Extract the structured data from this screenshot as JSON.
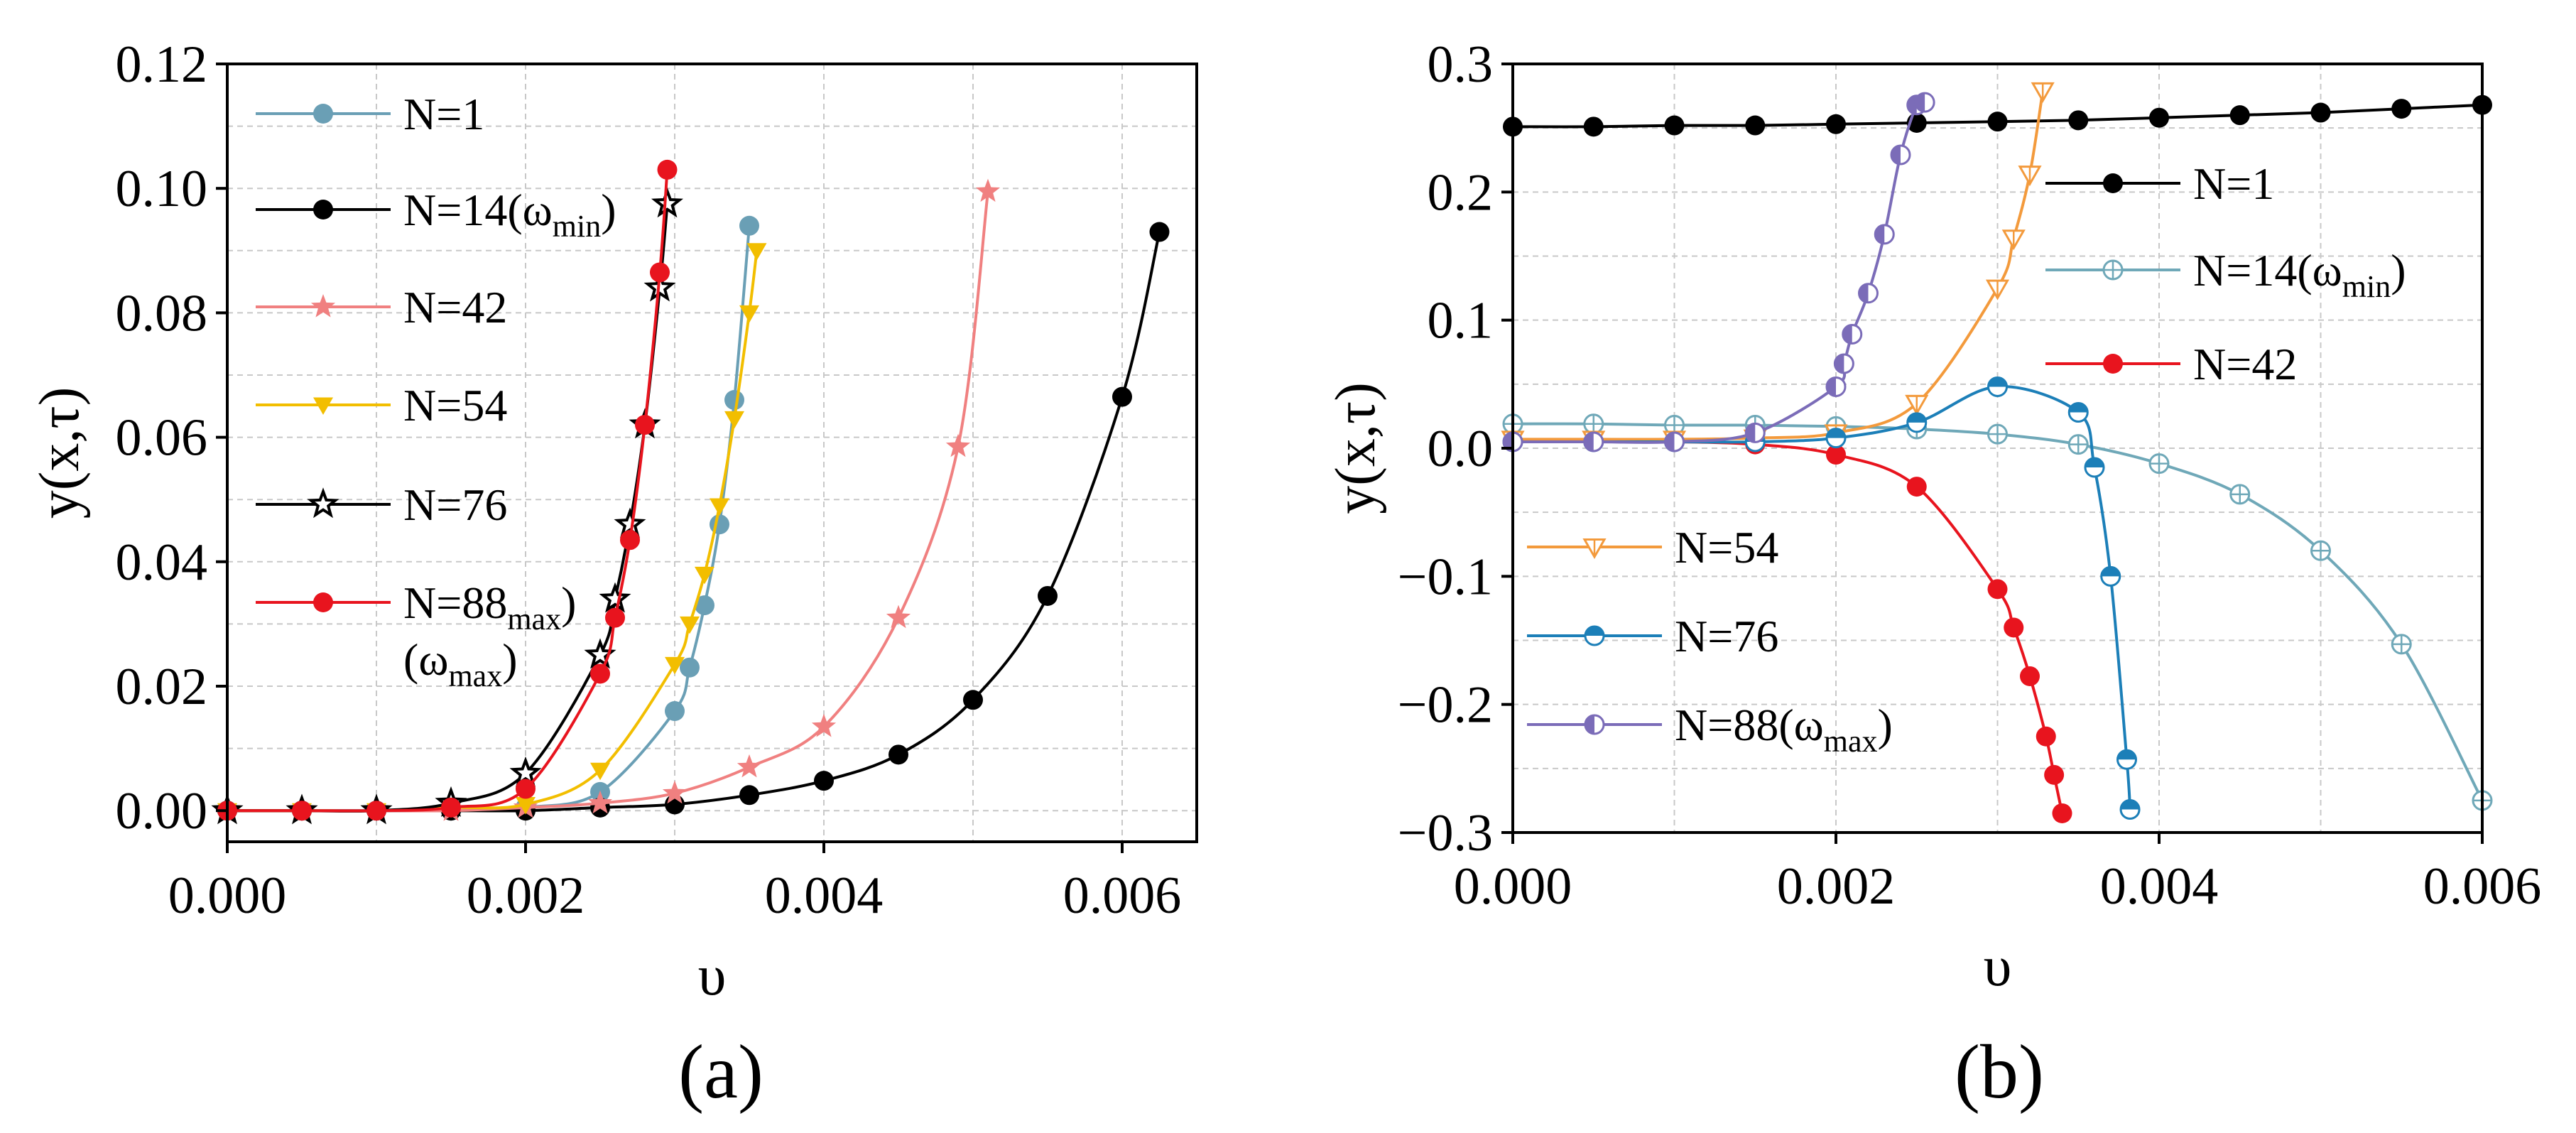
{
  "chart_data": [
    {
      "type": "line",
      "panel": "(a)",
      "xlabel": "υ",
      "ylabel": "y(x,τ)",
      "xlim": [
        0,
        0.0065
      ],
      "ylim": [
        -0.005,
        0.12
      ],
      "xticks": [
        "0.000",
        "0.002",
        "0.004",
        "0.006"
      ],
      "xtick_values": [
        0,
        0.002,
        0.004,
        0.006
      ],
      "yticks": [
        "0.00",
        "0.02",
        "0.04",
        "0.06",
        "0.08",
        "0.10",
        "0.12"
      ],
      "ytick_values": [
        0,
        0.02,
        0.04,
        0.06,
        0.08,
        0.1,
        0.12
      ],
      "grid": true,
      "legend_position": "upper-left",
      "series": [
        {
          "name": "N=1",
          "label": "N=1",
          "color": "#6a9fb5",
          "marker": "circle",
          "x": [
            0,
            0.0005,
            0.001,
            0.0015,
            0.002,
            0.0025,
            0.003,
            0.0031,
            0.0032,
            0.0033,
            0.0034,
            0.0035
          ],
          "y": [
            0,
            0,
            0,
            0,
            0.0005,
            0.003,
            0.016,
            0.023,
            0.033,
            0.046,
            0.066,
            0.094
          ]
        },
        {
          "name": "N=14(ωmin)",
          "label": "N=14(ω",
          "sub": "min",
          "tail": ")",
          "color": "#000000",
          "marker": "circle",
          "x": [
            0,
            0.0005,
            0.001,
            0.0015,
            0.002,
            0.0025,
            0.003,
            0.0035,
            0.004,
            0.0045,
            0.005,
            0.0055,
            0.006,
            0.00625
          ],
          "y": [
            0,
            0,
            0,
            0,
            0,
            0.0005,
            0.001,
            0.0025,
            0.0048,
            0.009,
            0.0178,
            0.0345,
            0.0665,
            0.093
          ]
        },
        {
          "name": "N=42",
          "label": "N=42",
          "color": "#f08080",
          "marker": "star-filled",
          "x": [
            0,
            0.0005,
            0.001,
            0.0015,
            0.002,
            0.0025,
            0.003,
            0.0035,
            0.004,
            0.0045,
            0.0049,
            0.0051
          ],
          "y": [
            0,
            0,
            0,
            0,
            0.0005,
            0.0012,
            0.0028,
            0.007,
            0.0135,
            0.031,
            0.0585,
            0.0995
          ]
        },
        {
          "name": "N=54",
          "label": "N=54",
          "color": "#f2be00",
          "marker": "triangle-down",
          "x": [
            0,
            0.0005,
            0.001,
            0.0015,
            0.002,
            0.0025,
            0.003,
            0.0031,
            0.0032,
            0.0033,
            0.0034,
            0.0035,
            0.00355
          ],
          "y": [
            0,
            0,
            0,
            0.0005,
            0.001,
            0.0065,
            0.0235,
            0.03,
            0.038,
            0.049,
            0.063,
            0.08,
            0.09
          ]
        },
        {
          "name": "N=76",
          "label": "N=76",
          "color": "#000000",
          "marker": "star-open",
          "x": [
            0,
            0.0005,
            0.001,
            0.0015,
            0.002,
            0.0025,
            0.0026,
            0.0027,
            0.0028,
            0.0029,
            0.00295
          ],
          "y": [
            0,
            0,
            0,
            0.0012,
            0.006,
            0.025,
            0.034,
            0.046,
            0.062,
            0.084,
            0.0975
          ]
        },
        {
          "name": "N=88(ωmax)",
          "label": "N=88",
          "label2": "(ω",
          "sub": "max",
          "tail": ")",
          "color": "#e8141e",
          "marker": "circle",
          "x": [
            0,
            0.0005,
            0.001,
            0.0015,
            0.002,
            0.0025,
            0.0026,
            0.0027,
            0.0028,
            0.0029,
            0.00295
          ],
          "y": [
            0,
            0,
            0,
            0.0005,
            0.0035,
            0.022,
            0.031,
            0.0435,
            0.062,
            0.0865,
            0.103
          ]
        }
      ]
    },
    {
      "type": "line",
      "panel": "(b)",
      "xlabel": "υ",
      "ylabel": "y(x,τ)",
      "xlim": [
        0,
        0.006
      ],
      "ylim": [
        -0.3,
        0.3
      ],
      "xticks": [
        "0.000",
        "0.002",
        "0.004",
        "0.006"
      ],
      "xtick_values": [
        0,
        0.002,
        0.004,
        0.006
      ],
      "yticks": [
        "−0.3",
        "−0.2",
        "−0.1",
        "0.0",
        "0.1",
        "0.2",
        "0.3"
      ],
      "ytick_values": [
        -0.3,
        -0.2,
        -0.1,
        0,
        0.1,
        0.2,
        0.3
      ],
      "grid": true,
      "legend_position": "right and lower-left",
      "series": [
        {
          "name": "N=1",
          "label": "N=1",
          "color": "#000000",
          "marker": "circle",
          "x": [
            0,
            0.0005,
            0.001,
            0.0015,
            0.002,
            0.0025,
            0.003,
            0.0035,
            0.004,
            0.0045,
            0.005,
            0.0055,
            0.006
          ],
          "y": [
            0.251,
            0.251,
            0.252,
            0.252,
            0.253,
            0.254,
            0.255,
            0.256,
            0.258,
            0.26,
            0.262,
            0.265,
            0.268
          ]
        },
        {
          "name": "N=14(ωmin)",
          "label": "N=14(ω",
          "sub": "min",
          "tail": ")",
          "color": "#6fa8b8",
          "marker": "circle-plus",
          "x": [
            0,
            0.0005,
            0.001,
            0.0015,
            0.002,
            0.0025,
            0.003,
            0.0035,
            0.004,
            0.0045,
            0.005,
            0.0055,
            0.006
          ],
          "y": [
            0.019,
            0.019,
            0.018,
            0.018,
            0.017,
            0.015,
            0.011,
            0.003,
            -0.012,
            -0.036,
            -0.08,
            -0.153,
            -0.275
          ]
        },
        {
          "name": "N=42",
          "label": "N=42",
          "color": "#e8141e",
          "marker": "circle",
          "x": [
            0,
            0.0005,
            0.001,
            0.0015,
            0.002,
            0.0025,
            0.003,
            0.0031,
            0.0032,
            0.0033,
            0.00335,
            0.0034
          ],
          "y": [
            0.005,
            0.005,
            0.005,
            0.003,
            -0.005,
            -0.03,
            -0.11,
            -0.14,
            -0.178,
            -0.225,
            -0.255,
            -0.285
          ]
        },
        {
          "name": "N=54",
          "label": "N=54",
          "color": "#f39a3c",
          "marker": "triangle-down-open",
          "x": [
            0,
            0.0005,
            0.001,
            0.0015,
            0.002,
            0.0025,
            0.003,
            0.0031,
            0.0032,
            0.00328
          ],
          "y": [
            0.007,
            0.007,
            0.007,
            0.008,
            0.012,
            0.035,
            0.125,
            0.164,
            0.214,
            0.279
          ]
        },
        {
          "name": "N=76",
          "label": "N=76",
          "color": "#1c7fb8",
          "marker": "circle-half-top",
          "x": [
            0,
            0.0005,
            0.001,
            0.0015,
            0.002,
            0.0025,
            0.003,
            0.0035,
            0.0036,
            0.0037,
            0.0038,
            0.00382
          ],
          "y": [
            0.005,
            0.005,
            0.005,
            0.005,
            0.008,
            0.02,
            0.048,
            0.028,
            -0.015,
            -0.1,
            -0.243,
            -0.282
          ]
        },
        {
          "name": "N=88(ωmax)",
          "label": "N=88(ω",
          "sub": "max",
          "tail": ")",
          "color": "#7b6cb8",
          "marker": "circle-half-left",
          "x": [
            0,
            0.0005,
            0.001,
            0.0015,
            0.002,
            0.00205,
            0.0021,
            0.0022,
            0.0023,
            0.0024,
            0.0025,
            0.00255
          ],
          "y": [
            0.005,
            0.005,
            0.005,
            0.012,
            0.048,
            0.066,
            0.089,
            0.121,
            0.167,
            0.229,
            0.268,
            0.27
          ]
        }
      ]
    }
  ],
  "captions": {
    "a": "(a)",
    "b": "(b)"
  }
}
